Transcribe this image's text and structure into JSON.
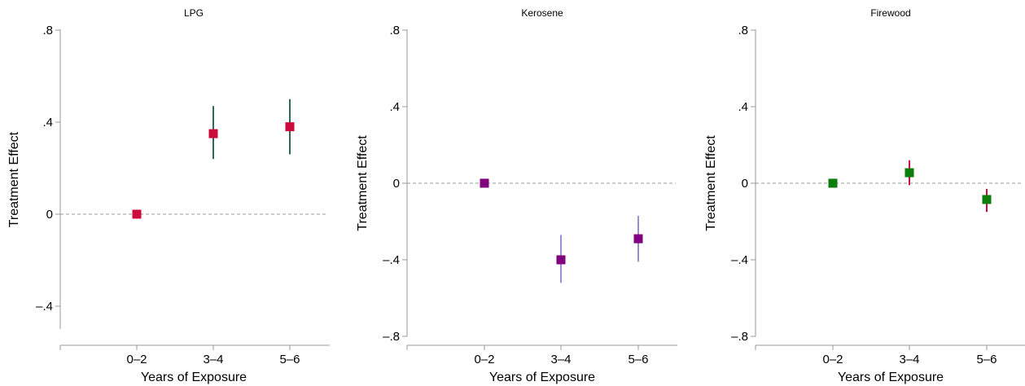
{
  "chart_data": [
    {
      "type": "scatter",
      "title": "LPG",
      "xlabel": "Years of Exposure",
      "ylabel": "Treatment Effect",
      "categories": [
        "0–2",
        "3–4",
        "5–6"
      ],
      "ylim": [
        -0.5,
        0.8
      ],
      "yticks": [
        -0.4,
        0,
        0.4,
        0.8
      ],
      "ytick_labels": [
        "–.4",
        "0",
        ".4",
        ".8"
      ],
      "points": [
        {
          "x": "0–2",
          "y": 0.0,
          "lo": 0.0,
          "hi": 0.0
        },
        {
          "x": "3–4",
          "y": 0.35,
          "lo": 0.24,
          "hi": 0.47
        },
        {
          "x": "5–6",
          "y": 0.38,
          "lo": 0.26,
          "hi": 0.5
        }
      ],
      "reference_line": 0,
      "marker_color": "#cc0a3c",
      "ci_color": "#2d6a5a"
    },
    {
      "type": "scatter",
      "title": "Kerosene",
      "xlabel": "Years of Exposure",
      "ylabel": "Treatment Effect",
      "categories": [
        "0–2",
        "3–4",
        "5–6"
      ],
      "ylim": [
        -0.8,
        0.8
      ],
      "yticks": [
        -0.8,
        -0.4,
        0,
        0.4,
        0.8
      ],
      "ytick_labels": [
        "–.8",
        "–.4",
        "0",
        ".4",
        ".8"
      ],
      "points": [
        {
          "x": "0–2",
          "y": 0.0,
          "lo": 0.0,
          "hi": 0.0
        },
        {
          "x": "3–4",
          "y": -0.4,
          "lo": -0.52,
          "hi": -0.27
        },
        {
          "x": "5–6",
          "y": -0.29,
          "lo": -0.41,
          "hi": -0.17
        }
      ],
      "reference_line": 0,
      "marker_color": "#800080",
      "ci_color": "#9a8fd6"
    },
    {
      "type": "scatter",
      "title": "Firewood",
      "xlabel": "Years of Exposure",
      "ylabel": "Treatment Effect",
      "categories": [
        "0–2",
        "3–4",
        "5–6"
      ],
      "ylim": [
        -0.8,
        0.8
      ],
      "yticks": [
        -0.8,
        -0.4,
        0,
        0.4,
        0.8
      ],
      "ytick_labels": [
        "–.8",
        "–.4",
        "0",
        ".4",
        ".8"
      ],
      "points": [
        {
          "x": "0–2",
          "y": 0.0,
          "lo": 0.0,
          "hi": 0.0
        },
        {
          "x": "3–4",
          "y": 0.055,
          "lo": -0.01,
          "hi": 0.12
        },
        {
          "x": "5–6",
          "y": -0.085,
          "lo": -0.15,
          "hi": -0.03
        }
      ],
      "reference_line": 0,
      "marker_color": "#0a7d0a",
      "ci_color": "#cc0a3c"
    }
  ]
}
